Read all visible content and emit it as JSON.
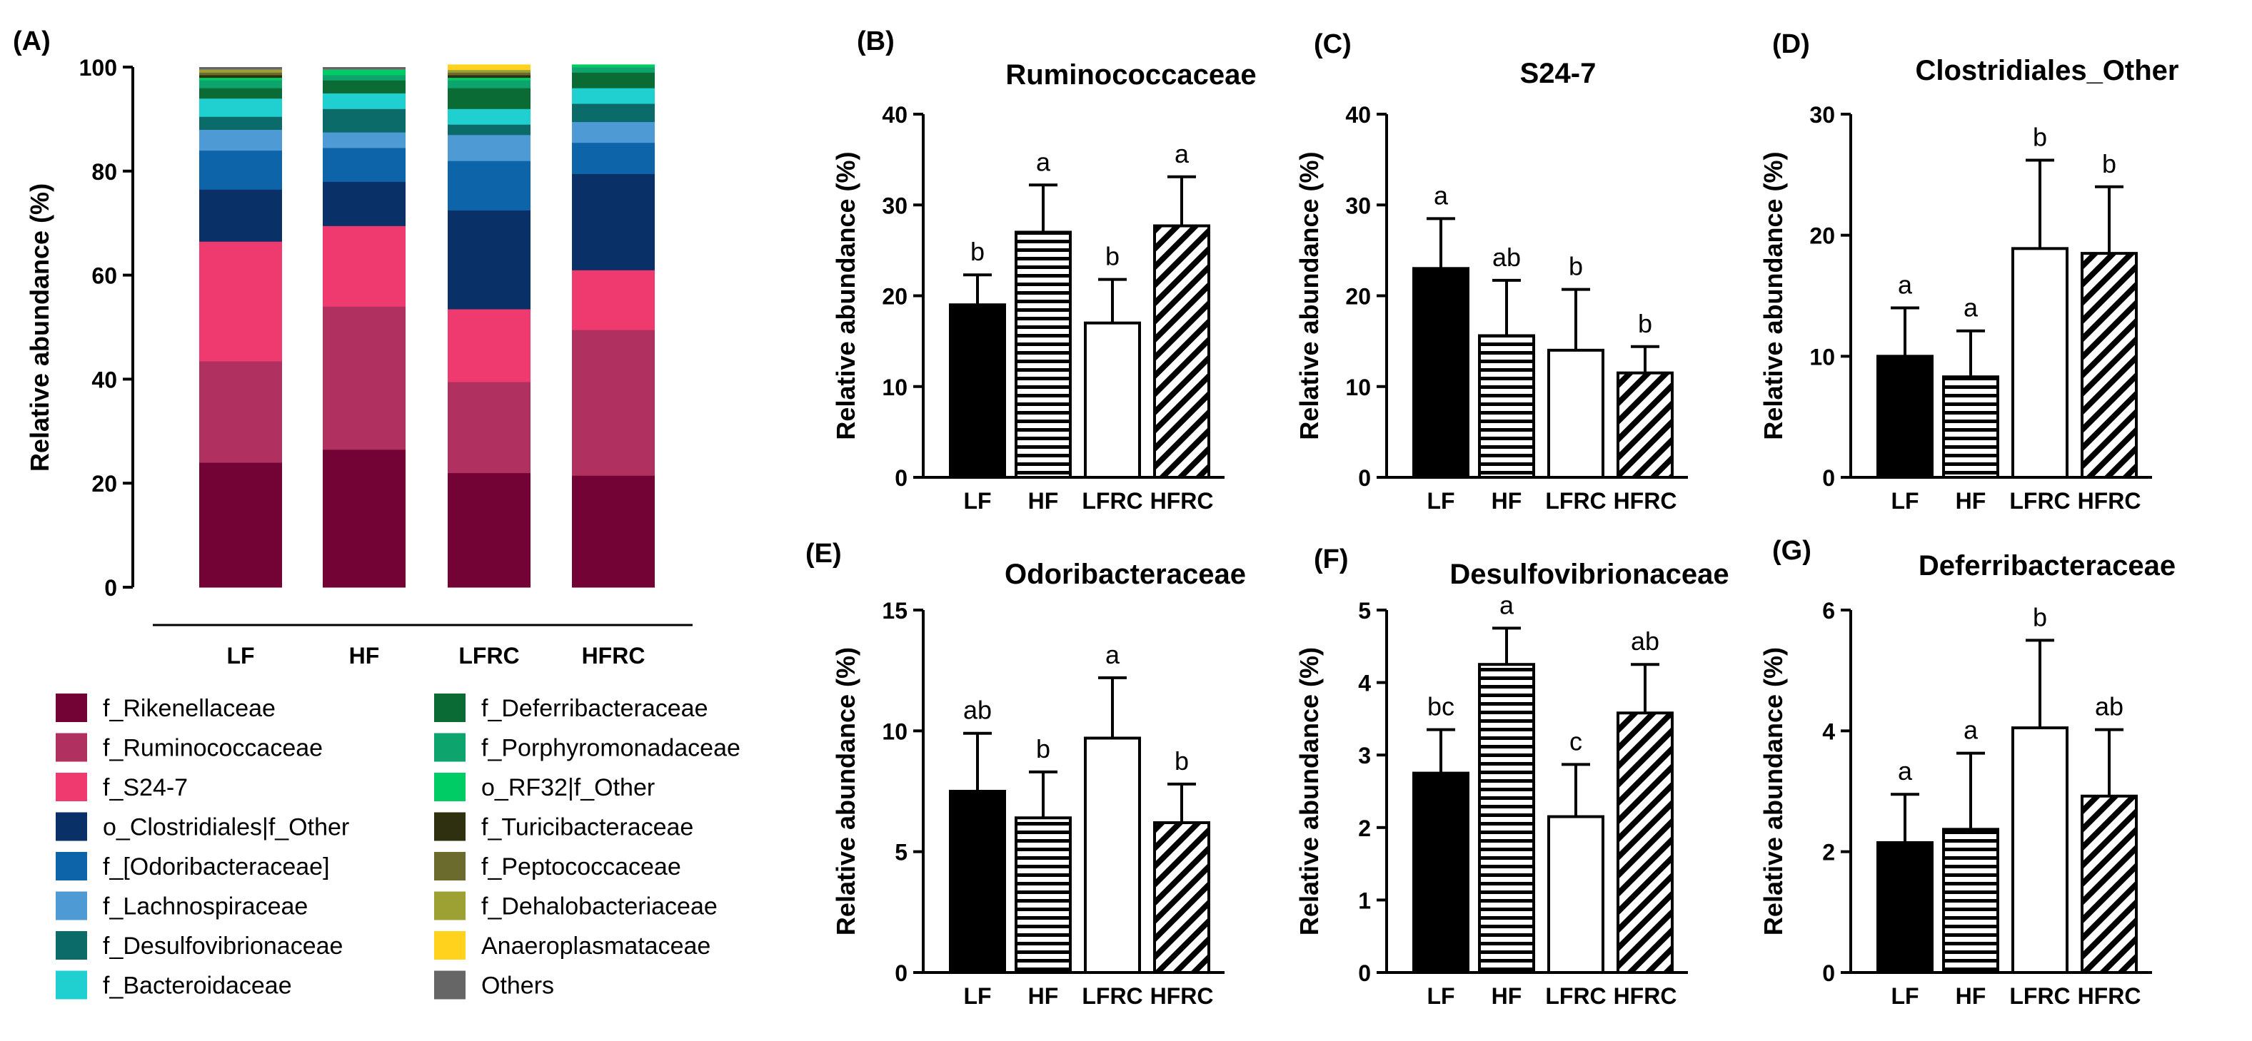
{
  "bar_patterns": {
    "LF": "solid-black",
    "HF": "horizontal-stripes",
    "LFRC": "white",
    "HFRC": "diagonal-stripes"
  },
  "chart_data": [
    {
      "panel": "(A)",
      "type": "stacked-bar",
      "title": "",
      "ylabel": "Relative abundance (%)",
      "ylim": [
        0,
        100
      ],
      "yticks": [
        0,
        20,
        40,
        60,
        80,
        100
      ],
      "categories": [
        "LF",
        "HF",
        "LFRC",
        "HFRC"
      ],
      "series": [
        {
          "name": "f_Rikenellaceae",
          "color": "#720334",
          "values": [
            24,
            26.5,
            22,
            21.5
          ]
        },
        {
          "name": "f_Ruminococcaceae",
          "color": "#b03060",
          "values": [
            19.5,
            27.5,
            17.5,
            28
          ]
        },
        {
          "name": "f_S24-7",
          "color": "#ee3a6e",
          "values": [
            23,
            15.5,
            14,
            11.5
          ]
        },
        {
          "name": "o_Clostridiales|f_Other",
          "color": "#0a3068",
          "values": [
            10,
            8.5,
            19,
            18.5
          ]
        },
        {
          "name": "f_[Odoribacteraceae]",
          "color": "#0e64a8",
          "values": [
            7.5,
            6.5,
            9.5,
            6
          ]
        },
        {
          "name": "f_Lachnospiraceae",
          "color": "#4d9ad5",
          "values": [
            4,
            3,
            5,
            4
          ]
        },
        {
          "name": "f_Desulfovibrionaceae",
          "color": "#0b6b68",
          "values": [
            2.5,
            4.5,
            2,
            3.5
          ]
        },
        {
          "name": "f_Bacteroidaceae",
          "color": "#20d0d0",
          "values": [
            3.5,
            3,
            3,
            3
          ]
        },
        {
          "name": "f_Deferribacteraceae",
          "color": "#0a6b35",
          "values": [
            2,
            2.5,
            4,
            3
          ]
        },
        {
          "name": "f_Porphyromonadaceae",
          "color": "#0ea46e",
          "values": [
            1.5,
            1,
            1.5,
            1
          ]
        },
        {
          "name": "o_RF32|f_Other",
          "color": "#00cc66",
          "values": [
            0.5,
            1,
            0.5,
            0.5
          ]
        },
        {
          "name": "f_Turicibacteraceae",
          "color": "#2e3010",
          "values": [
            0.5,
            0,
            0.5,
            0
          ]
        },
        {
          "name": "f_Peptococcaceae",
          "color": "#6b6b2e",
          "values": [
            0.5,
            0,
            0.5,
            0
          ]
        },
        {
          "name": "f_Dehalobacteriaceae",
          "color": "#9da033",
          "values": [
            0.5,
            0,
            0.5,
            0
          ]
        },
        {
          "name": "Anaeroplasmataceae",
          "color": "#ffd21e",
          "values": [
            0,
            0,
            1,
            0
          ]
        },
        {
          "name": "Others",
          "color": "#666666",
          "values": [
            0,
            0,
            0,
            0
          ]
        }
      ]
    },
    {
      "panel": "(B)",
      "type": "bar",
      "title": "Ruminococcaceae",
      "ylabel": "Relative abundance (%)",
      "ylim": [
        0,
        40
      ],
      "yticks": [
        0,
        10,
        20,
        30,
        40
      ],
      "categories": [
        "LF",
        "HF",
        "LFRC",
        "HFRC"
      ],
      "values": [
        19,
        27,
        17,
        27.7
      ],
      "errors": [
        3.3,
        5.2,
        4.8,
        5.4
      ],
      "letters": [
        "b",
        "a",
        "b",
        "a"
      ]
    },
    {
      "panel": "(C)",
      "type": "bar",
      "title": "S24-7",
      "ylabel": "Relative abundance (%)",
      "ylim": [
        0,
        40
      ],
      "yticks": [
        0,
        10,
        20,
        30,
        40
      ],
      "categories": [
        "LF",
        "HF",
        "LFRC",
        "HFRC"
      ],
      "values": [
        23,
        15.6,
        14,
        11.5
      ],
      "errors": [
        5.5,
        6.1,
        6.7,
        2.9
      ],
      "letters": [
        "a",
        "ab",
        "b",
        "b"
      ]
    },
    {
      "panel": "(D)",
      "type": "bar",
      "title": "Clostridiales_Other",
      "ylabel": "Relative abundance (%)",
      "ylim": [
        0,
        30
      ],
      "yticks": [
        0,
        10,
        20,
        30
      ],
      "categories": [
        "LF",
        "HF",
        "LFRC",
        "HFRC"
      ],
      "values": [
        10,
        8.3,
        18.9,
        18.5
      ],
      "errors": [
        4,
        3.8,
        7.3,
        5.5
      ],
      "letters": [
        "a",
        "a",
        "b",
        "b"
      ]
    },
    {
      "panel": "(E)",
      "type": "bar",
      "title": "Odoribacteraceae",
      "ylabel": "Relative abundance (%)",
      "ylim": [
        0,
        15
      ],
      "yticks": [
        0,
        5,
        10,
        15
      ],
      "categories": [
        "LF",
        "HF",
        "LFRC",
        "HFRC"
      ],
      "values": [
        7.5,
        6.4,
        9.7,
        6.2
      ],
      "errors": [
        2.4,
        1.9,
        2.5,
        1.6
      ],
      "letters": [
        "ab",
        "b",
        "a",
        "b"
      ]
    },
    {
      "panel": "(F)",
      "type": "bar",
      "title": "Desulfovibrionaceae",
      "ylabel": "Relative abundance (%)",
      "ylim": [
        0,
        5
      ],
      "yticks": [
        0,
        1,
        2,
        3,
        4,
        5
      ],
      "categories": [
        "LF",
        "HF",
        "LFRC",
        "HFRC"
      ],
      "values": [
        2.75,
        4.25,
        2.15,
        3.58
      ],
      "errors": [
        0.6,
        0.5,
        0.72,
        0.67
      ],
      "letters": [
        "bc",
        "a",
        "c",
        "ab"
      ]
    },
    {
      "panel": "(G)",
      "type": "bar",
      "title": "Deferribacteraceae",
      "ylabel": "Relative abundance (%)",
      "ylim": [
        0,
        6
      ],
      "yticks": [
        0,
        2,
        4,
        6
      ],
      "categories": [
        "LF",
        "HF",
        "LFRC",
        "HFRC"
      ],
      "values": [
        2.15,
        2.37,
        4.05,
        2.92
      ],
      "errors": [
        0.8,
        1.26,
        1.45,
        1.1
      ],
      "letters": [
        "a",
        "a",
        "b",
        "ab"
      ]
    }
  ]
}
